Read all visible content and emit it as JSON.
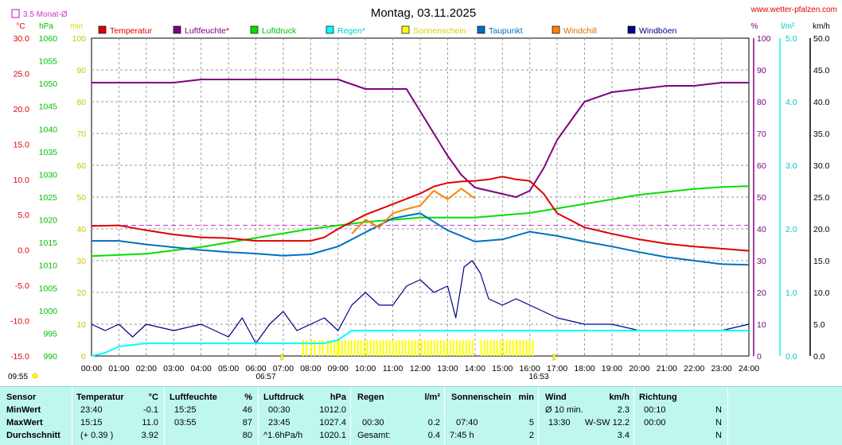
{
  "header": {
    "title": "Montag, 03.11.2025",
    "source": "www.wetter-pfalzen.com",
    "avg_note": "3.5 Monat-Ø",
    "time_start": "09:55",
    "sunrise": "06:57",
    "sunset": "16:53"
  },
  "colors": {
    "temperature": "#e00000",
    "humidity": "#800080",
    "pressure": "#00e000",
    "rain": "#00ffff",
    "sunshine": "#ffff00",
    "dewpoint": "#0070c0",
    "windchill": "#ff8000",
    "gust": "#00008b",
    "avg_line": "#cc33cc"
  },
  "chart_data": {
    "type": "line",
    "title": "Montag, 03.11.2025",
    "x_ticks": [
      "00:00",
      "01:00",
      "02:00",
      "03:00",
      "04:00",
      "05:00",
      "06:00",
      "07:00",
      "08:00",
      "09:00",
      "10:00",
      "11:00",
      "12:00",
      "13:00",
      "14:00",
      "15:00",
      "16:00",
      "17:00",
      "18:00",
      "19:00",
      "20:00",
      "21:00",
      "22:00",
      "23:00",
      "24:00"
    ],
    "x_range": [
      0,
      24
    ],
    "axes": {
      "temp": {
        "unit": "°C",
        "range": [
          -15,
          30
        ],
        "ticks": [
          "30.0",
          "25.0",
          "20.0",
          "15.0",
          "10.0",
          "5.0",
          "0.0",
          "-5.0",
          "-10.0",
          "-15.0"
        ]
      },
      "pressure": {
        "unit": "hPa",
        "range": [
          990,
          1060
        ],
        "ticks": [
          "1060",
          "1055",
          "1050",
          "1045",
          "1040",
          "1035",
          "1030",
          "1025",
          "1020",
          "1015",
          "1010",
          "1005",
          "1000",
          "995",
          "990"
        ]
      },
      "sun": {
        "unit": "min",
        "range": [
          0,
          100
        ],
        "ticks": [
          "100",
          "90",
          "80",
          "70",
          "60",
          "50",
          "40",
          "30",
          "20",
          "10",
          "0"
        ]
      },
      "humidity": {
        "unit": "%",
        "range": [
          0,
          100
        ],
        "ticks": [
          "100",
          "90",
          "80",
          "70",
          "60",
          "50",
          "40",
          "30",
          "20",
          "10",
          "0"
        ]
      },
      "rain": {
        "unit": "l/m²",
        "range": [
          0,
          5
        ],
        "ticks": [
          "5.0",
          "4.0",
          "3.0",
          "2.0",
          "1.0",
          "0.0"
        ]
      },
      "wind": {
        "unit": "km/h",
        "range": [
          0,
          50
        ],
        "ticks": [
          "50.0",
          "45.0",
          "40.0",
          "35.0",
          "30.0",
          "25.0",
          "20.0",
          "15.0",
          "10.0",
          "5.0",
          "0.0"
        ]
      }
    },
    "legend": [
      "Temperatur",
      "Luftfeuchte*",
      "Luftdruck",
      "Regen*",
      "Sonnenschein",
      "Taupunkt",
      "Windchill",
      "Windböen"
    ],
    "monthly_avg_temp": 3.5,
    "series": [
      {
        "name": "Temperatur",
        "axis": "temp",
        "x": [
          0,
          1,
          2,
          3,
          4,
          5,
          6,
          7,
          8,
          8.5,
          9,
          10,
          11,
          12,
          12.5,
          13,
          13.5,
          14,
          14.5,
          15,
          15.5,
          16,
          16.5,
          17,
          18,
          19,
          20,
          21,
          22,
          23,
          24
        ],
        "y": [
          3.4,
          3.5,
          2.8,
          2.2,
          1.8,
          1.7,
          1.3,
          1.3,
          1.3,
          1.8,
          3,
          5,
          6.5,
          8,
          9,
          9.5,
          9.7,
          9.8,
          10,
          10.4,
          10,
          9.8,
          8,
          5.2,
          3.2,
          2.3,
          1.5,
          0.9,
          0.5,
          0.2,
          -0.1
        ]
      },
      {
        "name": "Taupunkt",
        "axis": "temp",
        "x": [
          0,
          1,
          2,
          3,
          4,
          5,
          6,
          7,
          8,
          9,
          10,
          11,
          12,
          13,
          14,
          15,
          16,
          17,
          18,
          19,
          20,
          21,
          22,
          23,
          24
        ],
        "y": [
          1.3,
          1.3,
          0.8,
          0.4,
          0,
          -0.3,
          -0.5,
          -0.8,
          -0.6,
          0.5,
          2.5,
          4.5,
          5.2,
          2.8,
          1.2,
          1.5,
          2.6,
          2,
          1.2,
          0.5,
          -0.3,
          -1,
          -1.5,
          -2,
          -2.1
        ]
      },
      {
        "name": "Windchill",
        "axis": "temp",
        "x": [
          9.5,
          10,
          10.5,
          11,
          11.5,
          12,
          12.5,
          13,
          13.5,
          14
        ],
        "y": [
          2.3,
          4.3,
          3.2,
          5.2,
          5.8,
          6.3,
          8.4,
          7.2,
          8.7,
          7.3
        ]
      },
      {
        "name": "Luftfeuchte*",
        "axis": "humidity",
        "x": [
          0,
          1,
          2,
          3,
          4,
          5,
          6,
          7,
          8,
          9,
          10,
          11,
          11.5,
          12,
          12.5,
          13,
          13.5,
          14,
          14.5,
          15,
          15.5,
          16,
          16.5,
          17,
          18,
          19,
          20,
          21,
          22,
          23,
          24
        ],
        "y": [
          86,
          86,
          86,
          86,
          87,
          87,
          87,
          87,
          87,
          87,
          84,
          84,
          84,
          77,
          70,
          63,
          57,
          53,
          52,
          51,
          50,
          52,
          59,
          68,
          80,
          83,
          84,
          85,
          85,
          86,
          86
        ]
      },
      {
        "name": "Luftdruck",
        "axis": "pressure",
        "x": [
          0,
          2,
          4,
          6,
          8,
          10,
          12,
          14,
          16,
          18,
          20,
          22,
          23,
          24
        ],
        "y": [
          1012,
          1012.5,
          1014,
          1016,
          1018,
          1019.5,
          1020.5,
          1020.5,
          1021.5,
          1023.5,
          1025.5,
          1026.8,
          1027.2,
          1027.4
        ]
      },
      {
        "name": "Windböen",
        "axis": "wind",
        "x": [
          0,
          0.5,
          1,
          1.5,
          2,
          3,
          4,
          5,
          5.5,
          6,
          6.5,
          7,
          7.5,
          8,
          8.5,
          9,
          9.5,
          10,
          10.5,
          11,
          11.5,
          12,
          12.5,
          13,
          13.3,
          13.6,
          13.9,
          14.2,
          14.5,
          15,
          15.5,
          16,
          16.5,
          17,
          18,
          19,
          20,
          21,
          22,
          23,
          24
        ],
        "y": [
          5,
          4,
          5,
          3,
          5,
          4,
          5,
          3,
          6,
          2,
          5,
          7,
          4,
          5,
          6,
          4,
          8,
          10,
          8,
          8,
          11,
          12,
          10,
          11,
          6,
          14,
          15,
          13,
          9,
          8,
          9,
          8,
          7,
          6,
          5,
          5,
          4,
          4,
          4,
          4,
          5
        ]
      },
      {
        "name": "Regen*",
        "axis": "rain",
        "x": [
          0,
          0.5,
          1,
          2,
          8,
          8.5,
          9,
          9.5,
          10,
          16,
          24
        ],
        "y": [
          0,
          0.05,
          0.15,
          0.2,
          0.2,
          0.2,
          0.25,
          0.4,
          0.4,
          0.4,
          0.4
        ]
      }
    ],
    "sunshine_periods": [
      [
        7.7,
        7.9
      ],
      [
        8.0,
        8.2
      ],
      [
        8.3,
        8.5
      ],
      [
        8.6,
        9.0
      ],
      [
        9.0,
        13.9
      ],
      [
        14.2,
        15.5
      ],
      [
        15.5,
        16.1
      ]
    ]
  },
  "stats": {
    "sensor": {
      "header": "Sensor",
      "rows": [
        "MinWert",
        "MaxWert",
        "Durchschnitt"
      ]
    },
    "temperatur": {
      "header": "Temperatur",
      "unit": "°C",
      "rows": [
        [
          "23:40",
          "-0.1"
        ],
        [
          "15:15",
          "11.0"
        ],
        [
          "(+ 0.39 )",
          "3.92"
        ]
      ]
    },
    "luftfeuchte": {
      "header": "Luftfeuchte",
      "unit": "%",
      "rows": [
        [
          "15:25",
          "46"
        ],
        [
          "03:55",
          "87"
        ],
        [
          "",
          "80"
        ]
      ]
    },
    "luftdruck": {
      "header": "Luftdruck",
      "unit": "hPa",
      "rows": [
        [
          "00:30",
          "1012.0"
        ],
        [
          "23:45",
          "1027.4"
        ],
        [
          "^1.6hPa/h",
          "1020.1"
        ]
      ]
    },
    "regen": {
      "header": "Regen",
      "unit": "l/m²",
      "rows": [
        [
          "",
          ""
        ],
        [
          "00:30",
          "0.2"
        ],
        [
          "Gesamt:",
          "0.4"
        ]
      ]
    },
    "sonnenschein": {
      "header": "Sonnenschein",
      "unit": "min",
      "rows": [
        [
          "",
          ""
        ],
        [
          "07:40",
          "5"
        ],
        [
          "7:45 h",
          "2"
        ]
      ]
    },
    "wind": {
      "header": "Wind",
      "unit": "km/h",
      "rows": [
        [
          "Ø 10 min.",
          "2.3"
        ],
        [
          "13:30",
          "W-SW 12.2"
        ],
        [
          "",
          "3.4"
        ]
      ]
    },
    "richtung": {
      "header": "Richtung",
      "rows": [
        [
          "00:10",
          "N"
        ],
        [
          "00:00",
          "N"
        ],
        [
          "",
          "N"
        ]
      ]
    }
  }
}
